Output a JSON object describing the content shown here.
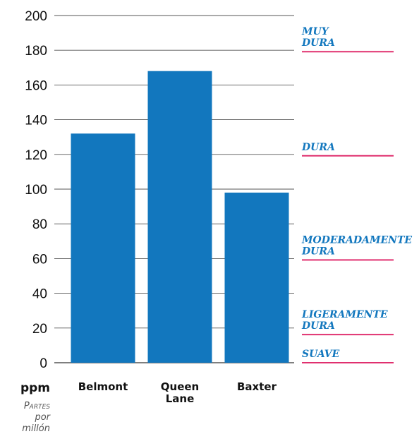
{
  "chart_data": {
    "type": "bar",
    "categories": [
      [
        "Belmont"
      ],
      [
        "Queen",
        "Lane"
      ],
      [
        "Baxter"
      ]
    ],
    "values": [
      132,
      168,
      98
    ],
    "ylim": [
      0,
      200
    ],
    "yticks": [
      0,
      20,
      40,
      60,
      80,
      100,
      120,
      140,
      160,
      180,
      200
    ],
    "y_unit": "ppm",
    "y_unit_subtitle": [
      "Partes",
      "por",
      "millón"
    ],
    "grid": true,
    "bar_color": "#1277be",
    "hardness_levels": [
      {
        "label": [
          "SUAVE"
        ],
        "threshold": 0
      },
      {
        "label": [
          "LIGERAMENTE",
          "DURA"
        ],
        "threshold": 17
      },
      {
        "label": [
          "MODERADAMENTE",
          "DURA"
        ],
        "threshold": 60
      },
      {
        "label": [
          "DURA"
        ],
        "threshold": 120
      },
      {
        "label": [
          "MUY",
          "DURA"
        ],
        "threshold": 180
      }
    ],
    "hardness_label_color": "#1277be",
    "hardness_line_color": "#e0306f"
  }
}
